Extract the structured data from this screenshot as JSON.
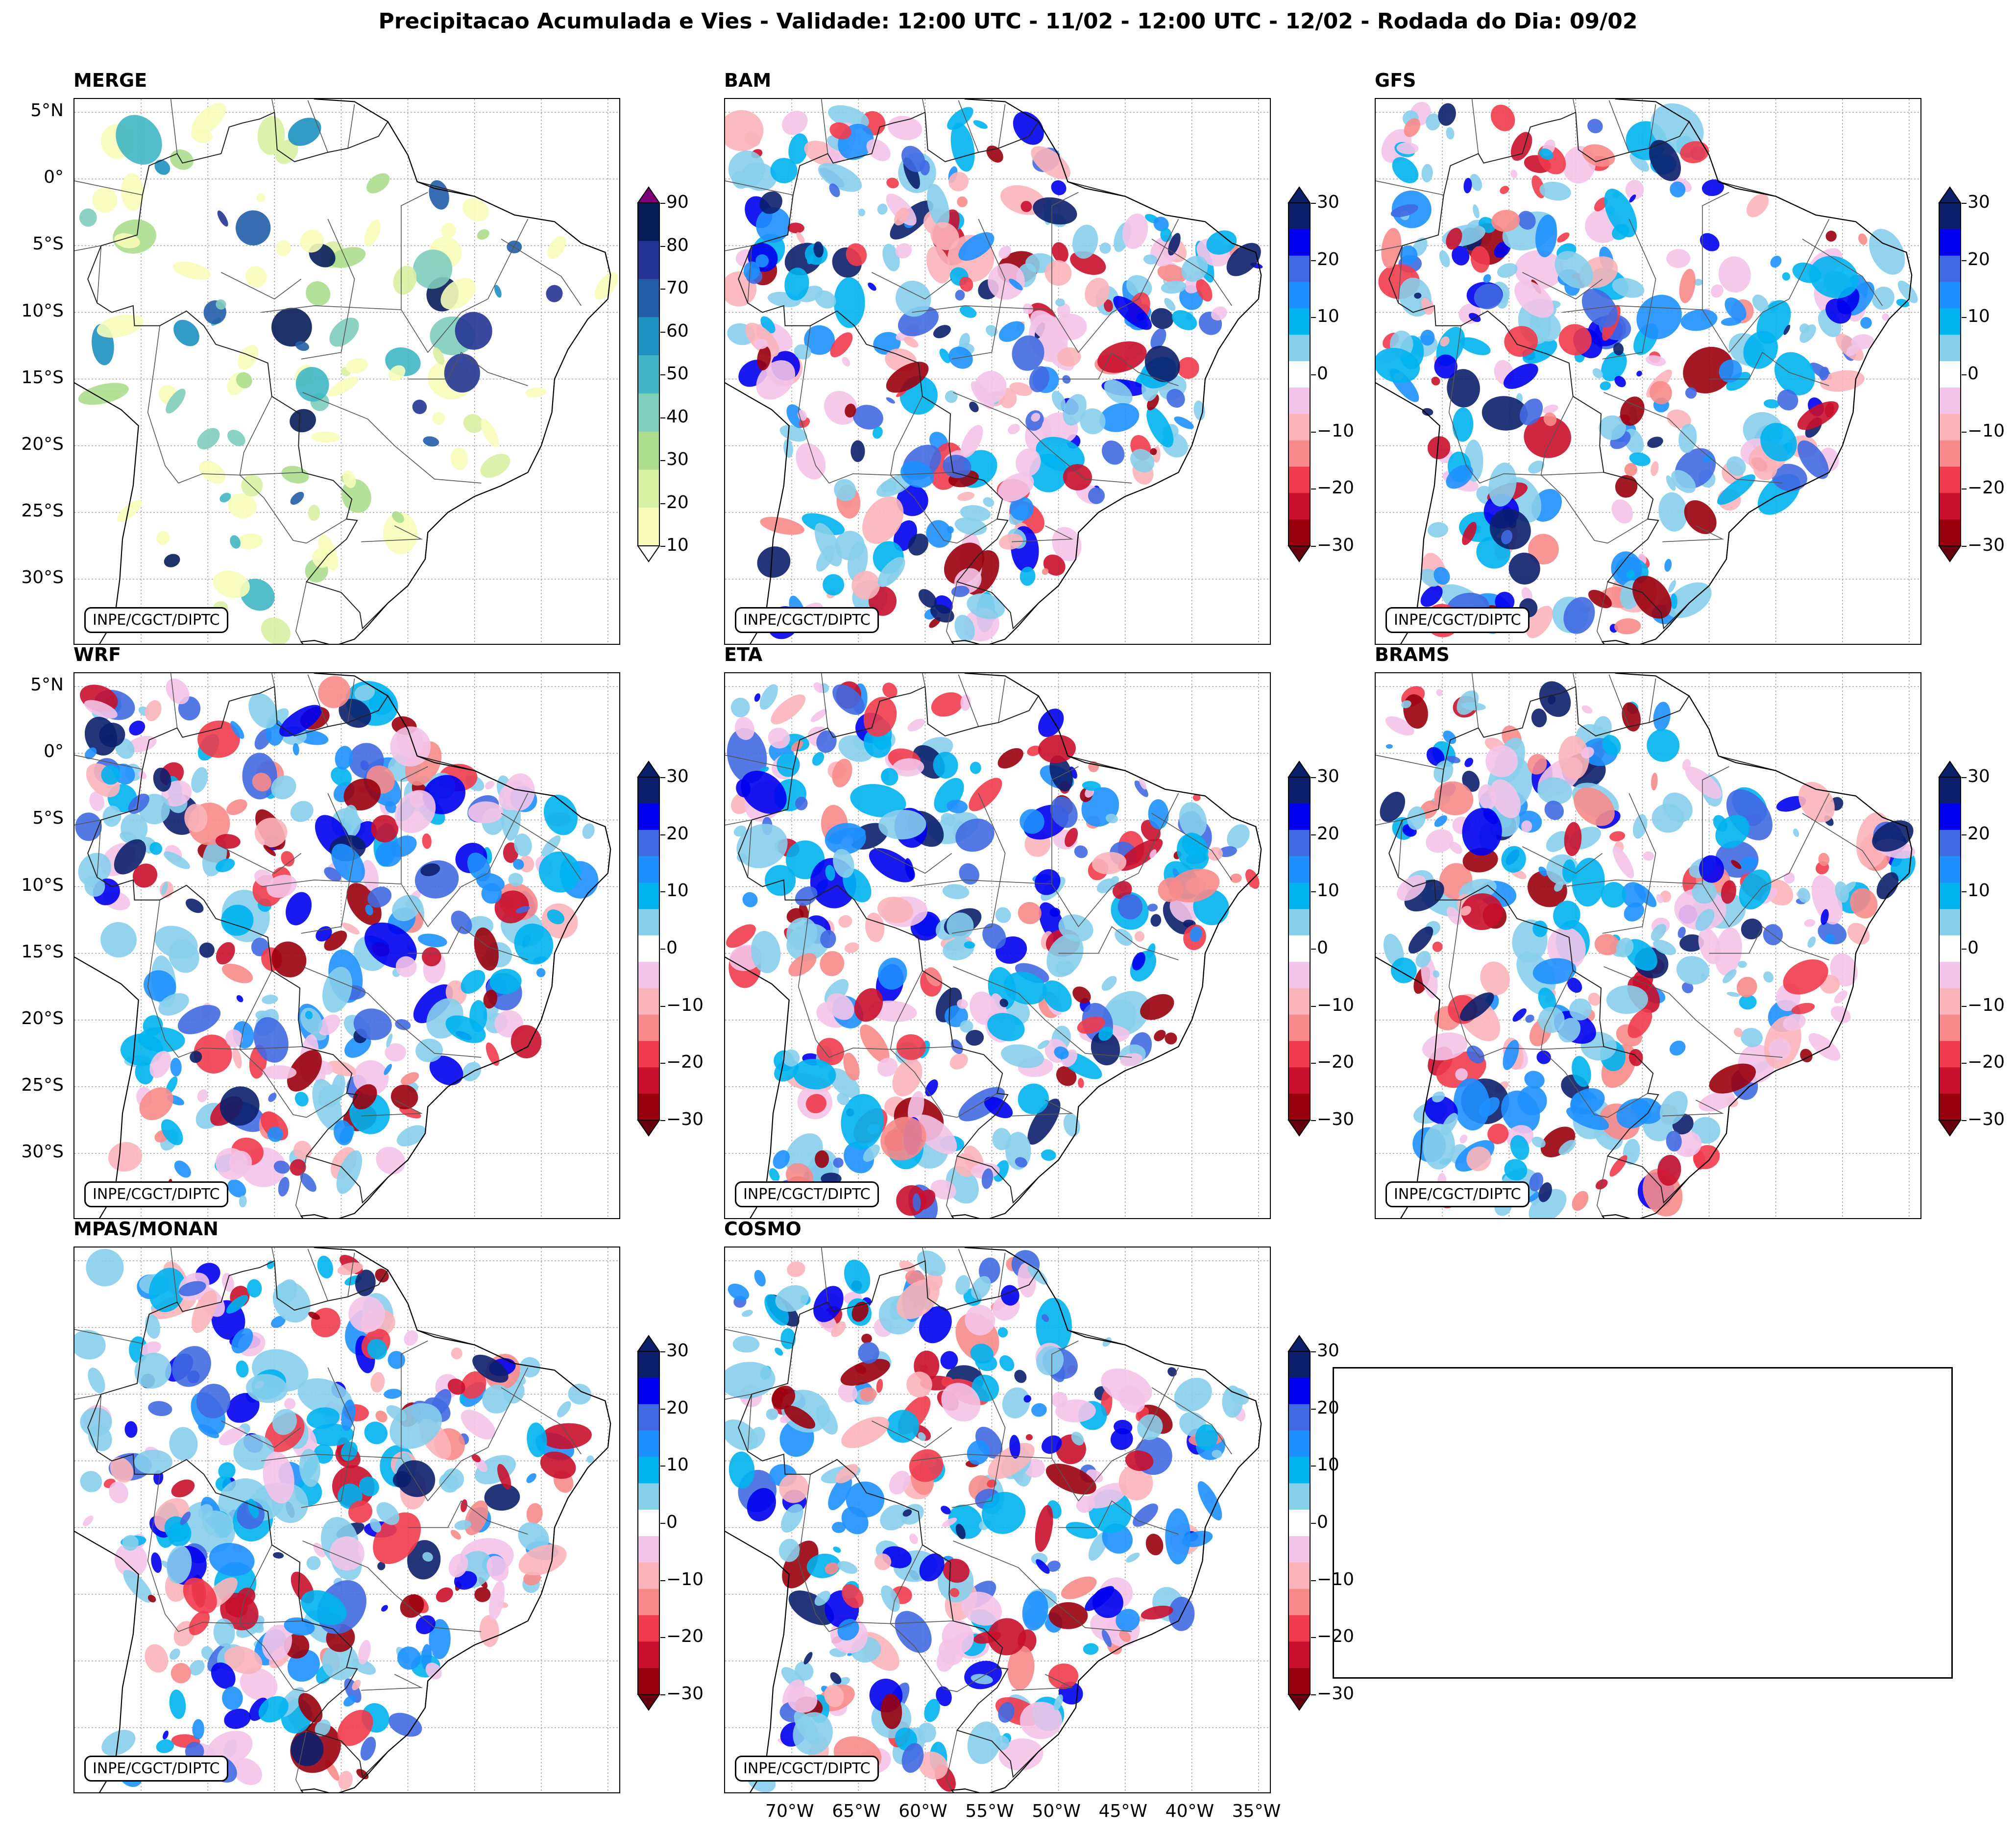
{
  "title": "Precipitacao Acumulada e Vies - Validade: 12:00 UTC - 11/02 - 12:00 UTC - 12/02 - Rodada do Dia: 09/02",
  "credit": "INPE/CGCT/DIPTC",
  "panels": [
    {
      "name": "MERGE",
      "kind": "precip"
    },
    {
      "name": "BAM",
      "kind": "bias"
    },
    {
      "name": "GFS",
      "kind": "bias"
    },
    {
      "name": "WRF",
      "kind": "bias"
    },
    {
      "name": "ETA",
      "kind": "bias"
    },
    {
      "name": "BRAMS",
      "kind": "bias"
    },
    {
      "name": "MPAS/MONAN",
      "kind": "bias"
    },
    {
      "name": "COSMO",
      "kind": "bias"
    }
  ],
  "lat_ticks": [
    "5°N",
    "0°",
    "5°S",
    "10°S",
    "15°S",
    "20°S",
    "25°S",
    "30°S"
  ],
  "lon_ticks": [
    "70°W",
    "65°W",
    "60°W",
    "55°W",
    "50°W",
    "45°W",
    "40°W",
    "35°W"
  ],
  "chart_data": {
    "type": "heatmap",
    "title": "Precipitacao Acumulada e Vies - Validade: 12:00 UTC - 11/02 - 12:00 UTC - 12/02 - Rodada do Dia: 09/02",
    "lat_range": [
      -35,
      6
    ],
    "lon_range": [
      -75,
      -34
    ],
    "precip_colorbar": {
      "ticks": [
        "90",
        "80",
        "70",
        "60",
        "50",
        "40",
        "30",
        "20",
        "10"
      ],
      "levels": [
        10,
        20,
        30,
        40,
        50,
        60,
        70,
        80,
        90
      ],
      "colors": [
        "#f7fcb9",
        "#d9f0a3",
        "#addd8e",
        "#7fcdbb",
        "#41b6c4",
        "#1d91c0",
        "#225ea8",
        "#253494",
        "#081d58"
      ],
      "over_color": "#7a0177",
      "under_color": "#ffffff"
    },
    "bias_colorbar": {
      "ticks": [
        "30",
        "20",
        "10",
        "0",
        "−10",
        "−20",
        "−30"
      ],
      "levels": [
        -30,
        -25,
        -20,
        -15,
        -10,
        -5,
        5,
        10,
        15,
        20,
        25,
        30
      ],
      "colors": [
        "#99000d",
        "#c8102e",
        "#ef3b4c",
        "#f78b8b",
        "#fbb4b9",
        "#f3c3e8",
        "#ffffff",
        "#87ceeb",
        "#00b2ee",
        "#1e90ff",
        "#4169e1",
        "#0000ee",
        "#0c1f6b"
      ],
      "over_color": "#0c1f6b",
      "under_color": "#67000d"
    },
    "colors": {
      "background": "#ffffff",
      "coast": "#000000",
      "borders": "#555555",
      "grid": "#999999"
    }
  }
}
